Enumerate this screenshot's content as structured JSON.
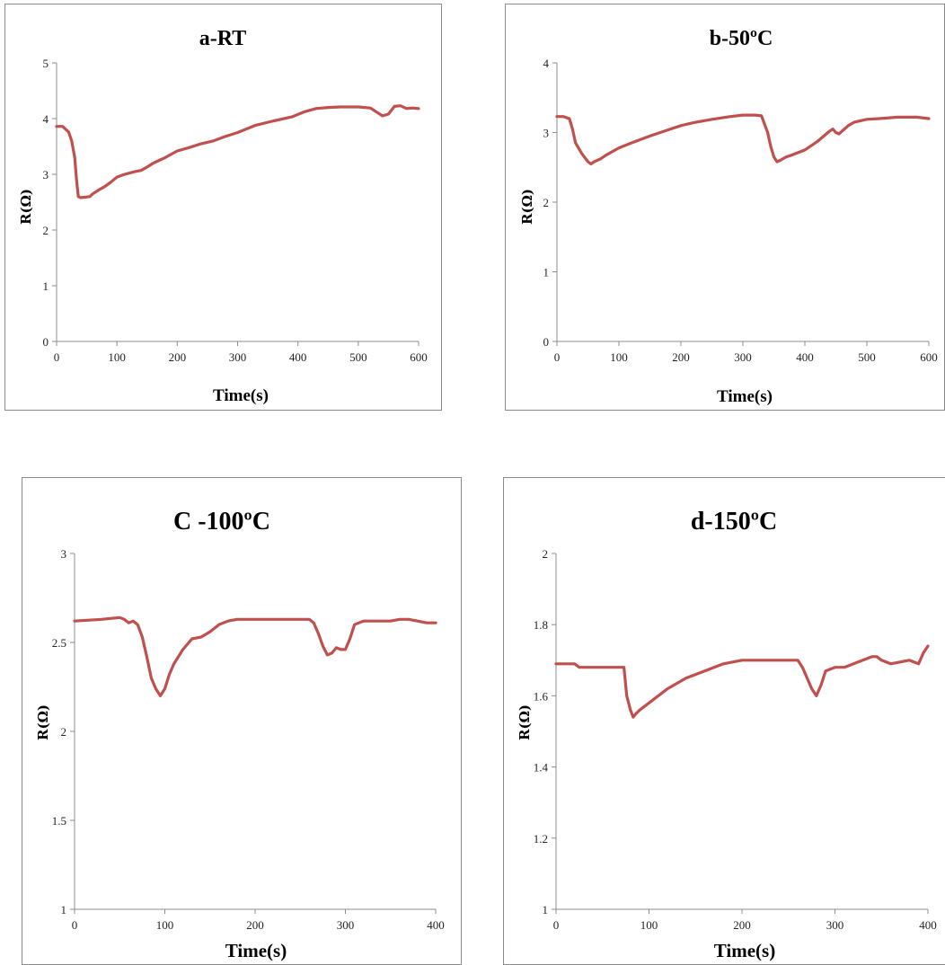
{
  "line_color": "#c0504d",
  "chart_data": [
    {
      "type": "line",
      "title": "a-RT",
      "xlabel": "Time(s)",
      "ylabel": "R(Ω)",
      "xlim": [
        0,
        600
      ],
      "ylim": [
        0,
        5
      ],
      "xticks": [
        "0",
        "100",
        "200",
        "300",
        "400",
        "500",
        "600"
      ],
      "yticks": [
        "0",
        "1",
        "2",
        "3",
        "4",
        "5"
      ],
      "grid": false,
      "x": [
        0,
        10,
        20,
        25,
        30,
        33,
        36,
        40,
        55,
        60,
        70,
        80,
        90,
        100,
        110,
        130,
        140,
        150,
        160,
        170,
        180,
        200,
        220,
        240,
        260,
        280,
        300,
        330,
        360,
        390,
        410,
        430,
        450,
        470,
        500,
        520,
        530,
        540,
        550,
        560,
        570,
        580,
        590,
        600
      ],
      "y": [
        3.86,
        3.86,
        3.76,
        3.6,
        3.3,
        2.9,
        2.6,
        2.58,
        2.6,
        2.65,
        2.72,
        2.78,
        2.86,
        2.95,
        2.99,
        3.05,
        3.07,
        3.13,
        3.2,
        3.25,
        3.3,
        3.42,
        3.48,
        3.55,
        3.6,
        3.68,
        3.75,
        3.88,
        3.96,
        4.03,
        4.12,
        4.18,
        4.2,
        4.21,
        4.21,
        4.19,
        4.12,
        4.05,
        4.08,
        4.22,
        4.23,
        4.18,
        4.19,
        4.18
      ]
    },
    {
      "type": "line",
      "title": "b-50ºC",
      "xlabel": "Time(s)",
      "ylabel": "R(Ω)",
      "xlim": [
        0,
        600
      ],
      "ylim": [
        0,
        4
      ],
      "xticks": [
        "0",
        "100",
        "200",
        "300",
        "400",
        "500",
        "600"
      ],
      "yticks": [
        "0",
        "1",
        "2",
        "3",
        "4"
      ],
      "grid": false,
      "x": [
        0,
        10,
        20,
        25,
        30,
        40,
        50,
        55,
        60,
        70,
        80,
        100,
        120,
        150,
        180,
        200,
        220,
        250,
        280,
        300,
        320,
        330,
        340,
        345,
        350,
        355,
        360,
        370,
        380,
        400,
        420,
        440,
        445,
        450,
        455,
        460,
        470,
        480,
        500,
        520,
        550,
        580,
        600
      ],
      "y": [
        3.23,
        3.23,
        3.2,
        3.05,
        2.85,
        2.7,
        2.58,
        2.55,
        2.58,
        2.62,
        2.68,
        2.78,
        2.85,
        2.95,
        3.04,
        3.1,
        3.14,
        3.19,
        3.23,
        3.25,
        3.25,
        3.24,
        3.0,
        2.8,
        2.65,
        2.58,
        2.6,
        2.65,
        2.68,
        2.75,
        2.87,
        3.02,
        3.05,
        3.0,
        2.98,
        3.02,
        3.1,
        3.15,
        3.19,
        3.2,
        3.22,
        3.22,
        3.2
      ]
    },
    {
      "type": "line",
      "title": "C -100ºC",
      "xlabel": "Time(s)",
      "ylabel": "R(Ω)",
      "xlim": [
        0,
        400
      ],
      "ylim": [
        1,
        3
      ],
      "xticks": [
        "0",
        "100",
        "200",
        "300",
        "400"
      ],
      "yticks": [
        "1",
        "1.5",
        "2",
        "2.5",
        "3"
      ],
      "grid": false,
      "x": [
        0,
        30,
        50,
        55,
        60,
        65,
        70,
        75,
        80,
        85,
        90,
        95,
        100,
        105,
        110,
        120,
        130,
        140,
        150,
        160,
        170,
        180,
        200,
        230,
        260,
        265,
        270,
        275,
        280,
        285,
        290,
        295,
        300,
        305,
        310,
        320,
        350,
        360,
        370,
        380,
        390,
        400
      ],
      "y": [
        2.62,
        2.63,
        2.64,
        2.63,
        2.61,
        2.62,
        2.6,
        2.53,
        2.42,
        2.3,
        2.24,
        2.2,
        2.24,
        2.32,
        2.38,
        2.46,
        2.52,
        2.53,
        2.56,
        2.6,
        2.62,
        2.63,
        2.63,
        2.63,
        2.63,
        2.61,
        2.55,
        2.48,
        2.43,
        2.44,
        2.47,
        2.46,
        2.46,
        2.52,
        2.6,
        2.62,
        2.62,
        2.63,
        2.63,
        2.62,
        2.61,
        2.61
      ]
    },
    {
      "type": "line",
      "title": "d-150ºC",
      "xlabel": "Time(s)",
      "ylabel": "R(Ω)",
      "xlim": [
        0,
        400
      ],
      "ylim": [
        1,
        2
      ],
      "xticks": [
        "0",
        "100",
        "200",
        "300",
        "400"
      ],
      "yticks": [
        "1",
        "1.2",
        "1.4",
        "1.6",
        "1.8",
        "2"
      ],
      "grid": false,
      "x": [
        0,
        10,
        20,
        25,
        40,
        60,
        70,
        73,
        76,
        80,
        83,
        86,
        90,
        100,
        120,
        140,
        160,
        170,
        180,
        200,
        220,
        240,
        250,
        260,
        265,
        270,
        275,
        280,
        285,
        290,
        300,
        310,
        320,
        330,
        340,
        345,
        350,
        360,
        380,
        390,
        395,
        400
      ],
      "y": [
        1.69,
        1.69,
        1.69,
        1.68,
        1.68,
        1.68,
        1.68,
        1.68,
        1.6,
        1.56,
        1.54,
        1.55,
        1.56,
        1.58,
        1.62,
        1.65,
        1.67,
        1.68,
        1.69,
        1.7,
        1.7,
        1.7,
        1.7,
        1.7,
        1.68,
        1.65,
        1.62,
        1.6,
        1.63,
        1.67,
        1.68,
        1.68,
        1.69,
        1.7,
        1.71,
        1.71,
        1.7,
        1.69,
        1.7,
        1.69,
        1.72,
        1.74
      ]
    }
  ]
}
